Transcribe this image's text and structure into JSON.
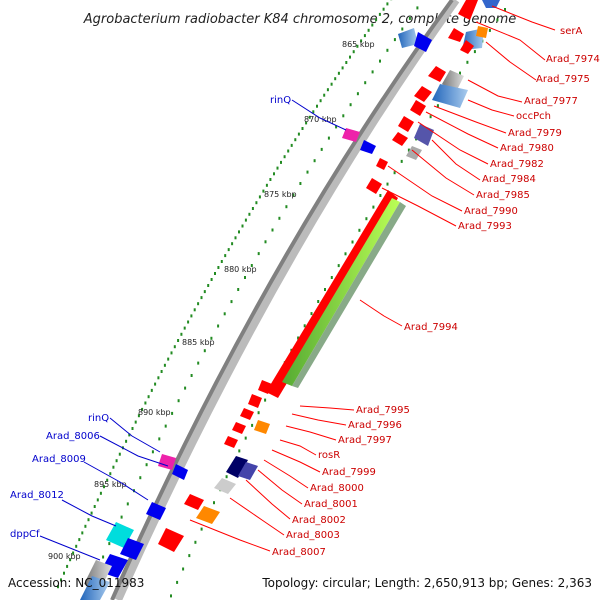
{
  "title": "Agrobacterium radiobacter K84 chromosome 2, complete genome",
  "footer": {
    "accession": "Accession: NC_011983",
    "topology": "Topology: circular; Length: 2,650,913 bp; Genes: 2,363"
  },
  "colors": {
    "gene_red": "#ff0000",
    "gene_blue": "#0000ff",
    "label_red": "#cc0000",
    "label_blue": "#0000cc",
    "backbone": "#808080",
    "tick_green": "#228b22"
  },
  "scale_labels": [
    "865 kbp",
    "870 kbp",
    "875 kbp",
    "880 kbp",
    "885 kbp",
    "890 kbp",
    "895 kbp",
    "900 kbp"
  ],
  "right_labels": [
    "serA",
    "Arad_7974",
    "Arad_7975",
    "Arad_7977",
    "occPch",
    "Arad_7979",
    "Arad_7980",
    "Arad_7982",
    "Arad_7984",
    "Arad_7985",
    "Arad_7990",
    "Arad_7993",
    "Arad_7994",
    "Arad_7995",
    "Arad_7996",
    "Arad_7997",
    "rosR",
    "Arad_7999",
    "Arad_8000",
    "Arad_8001",
    "Arad_8002",
    "Arad_8003",
    "Arad_8007"
  ],
  "left_labels": [
    "rinQ",
    "rinQ",
    "Arad_8006",
    "Arad_8009",
    "Arad_8012",
    "dppCf"
  ]
}
